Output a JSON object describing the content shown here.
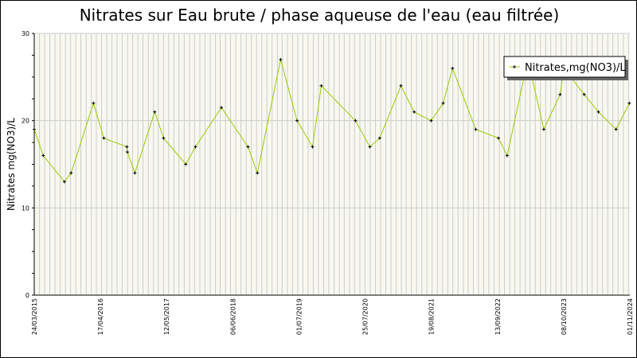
{
  "chart_data": {
    "type": "line",
    "title": "Nitrates sur Eau brute / phase aqueuse de l'eau (eau filtrée)",
    "xlabel": "",
    "ylabel": "Nitrates mg(NO3)/L",
    "ylim": [
      0,
      30
    ],
    "xlim": [
      "2015-03-24",
      "2024-11-01"
    ],
    "yticks": [
      "0",
      "10",
      "20",
      "30"
    ],
    "xticks": [
      "24/03/2015",
      "17/04/2016",
      "12/05/2017",
      "06/06/2018",
      "01/07/2019",
      "25/07/2020",
      "19/08/2021",
      "13/09/2022",
      "08/10/2023",
      "01/11/2024"
    ],
    "grid": true,
    "legend_position": "top-right",
    "colors": {
      "line": "#99cc00",
      "marker": "#000000",
      "background": "#f8f8f0",
      "grid": "#cccccc"
    },
    "series": [
      {
        "name": "Nitrates,mg(NO3)/L",
        "x": [
          "2015-03-24",
          "2015-05-16",
          "2015-09-18",
          "2015-10-27",
          "2016-03-07",
          "2016-05-07",
          "2016-09-20",
          "2016-09-23",
          "2016-11-06",
          "2017-03-03",
          "2017-04-24",
          "2017-09-02",
          "2017-10-29",
          "2018-03-31",
          "2018-09-04",
          "2018-10-29",
          "2019-03-15",
          "2019-06-20",
          "2019-09-19",
          "2019-11-10",
          "2020-05-29",
          "2020-08-22",
          "2020-10-19",
          "2021-02-21",
          "2021-05-10",
          "2021-08-18",
          "2021-10-28",
          "2021-12-22",
          "2022-05-08",
          "2022-09-19",
          "2022-11-09",
          "2023-03-11",
          "2023-06-13",
          "2023-09-17",
          "2023-10-10",
          "2024-02-06",
          "2024-04-30",
          "2024-08-12",
          "2024-10-29"
        ],
        "values": [
          19,
          16,
          13,
          14,
          22,
          18,
          17,
          16.4,
          14,
          21,
          18,
          15,
          17,
          21.5,
          17,
          14,
          27,
          20,
          17,
          24,
          20,
          17,
          18,
          24,
          21,
          20,
          22,
          26,
          19,
          18,
          16,
          27,
          19,
          23,
          26,
          23,
          21,
          19,
          22
        ]
      }
    ]
  }
}
